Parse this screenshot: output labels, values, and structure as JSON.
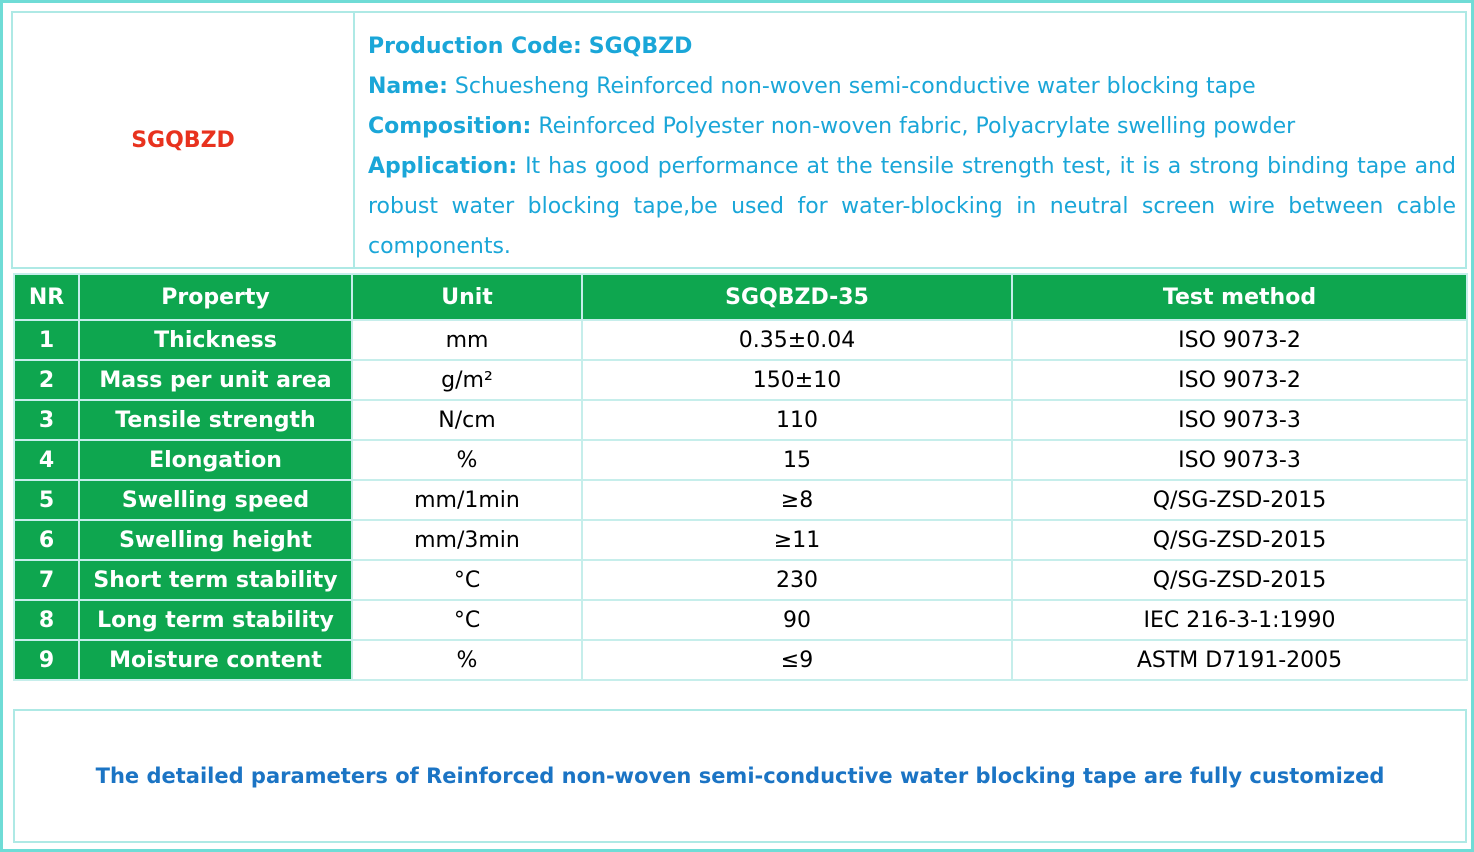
{
  "header": {
    "code": "SGQBZD",
    "fields": [
      {
        "label": "Production Code:",
        "value": "SGQBZD"
      },
      {
        "label": "Name:",
        "value": "Schuesheng Reinforced non-woven semi-conductive water blocking tape"
      },
      {
        "label": "Composition:",
        "value": "Reinforced Polyester non-woven fabric, Polyacrylate swelling powder"
      },
      {
        "label": "Application:",
        "value": "It has good performance at the tensile strength test, it is a strong binding tape and robust water blocking tape,be used for water-blocking in neutral screen wire between cable components."
      }
    ]
  },
  "table": {
    "columns": [
      "NR",
      "Property",
      "Unit",
      "SGQBZD-35",
      "Test method"
    ],
    "rows": [
      [
        "1",
        "Thickness",
        "mm",
        "0.35±0.04",
        "ISO 9073-2"
      ],
      [
        "2",
        "Mass per unit area",
        "g/m²",
        "150±10",
        "ISO 9073-2"
      ],
      [
        "3",
        "Tensile strength",
        "N/cm",
        "110",
        "ISO 9073-3"
      ],
      [
        "4",
        "Elongation",
        "%",
        "15",
        "ISO 9073-3"
      ],
      [
        "5",
        "Swelling speed",
        "mm/1min",
        "≥8",
        "Q/SG-ZSD-2015"
      ],
      [
        "6",
        "Swelling height",
        "mm/3min",
        "≥11",
        "Q/SG-ZSD-2015"
      ],
      [
        "7",
        "Short term stability",
        "°C",
        "230",
        "Q/SG-ZSD-2015"
      ],
      [
        "8",
        "Long term stability",
        "°C",
        "90",
        "IEC 216-3-1:1990"
      ],
      [
        "9",
        "Moisture content",
        "%",
        "≤9",
        "ASTM D7191-2005"
      ]
    ]
  },
  "footer": "The detailed parameters of Reinforced non-woven semi-conductive water blocking tape are fully customized"
}
